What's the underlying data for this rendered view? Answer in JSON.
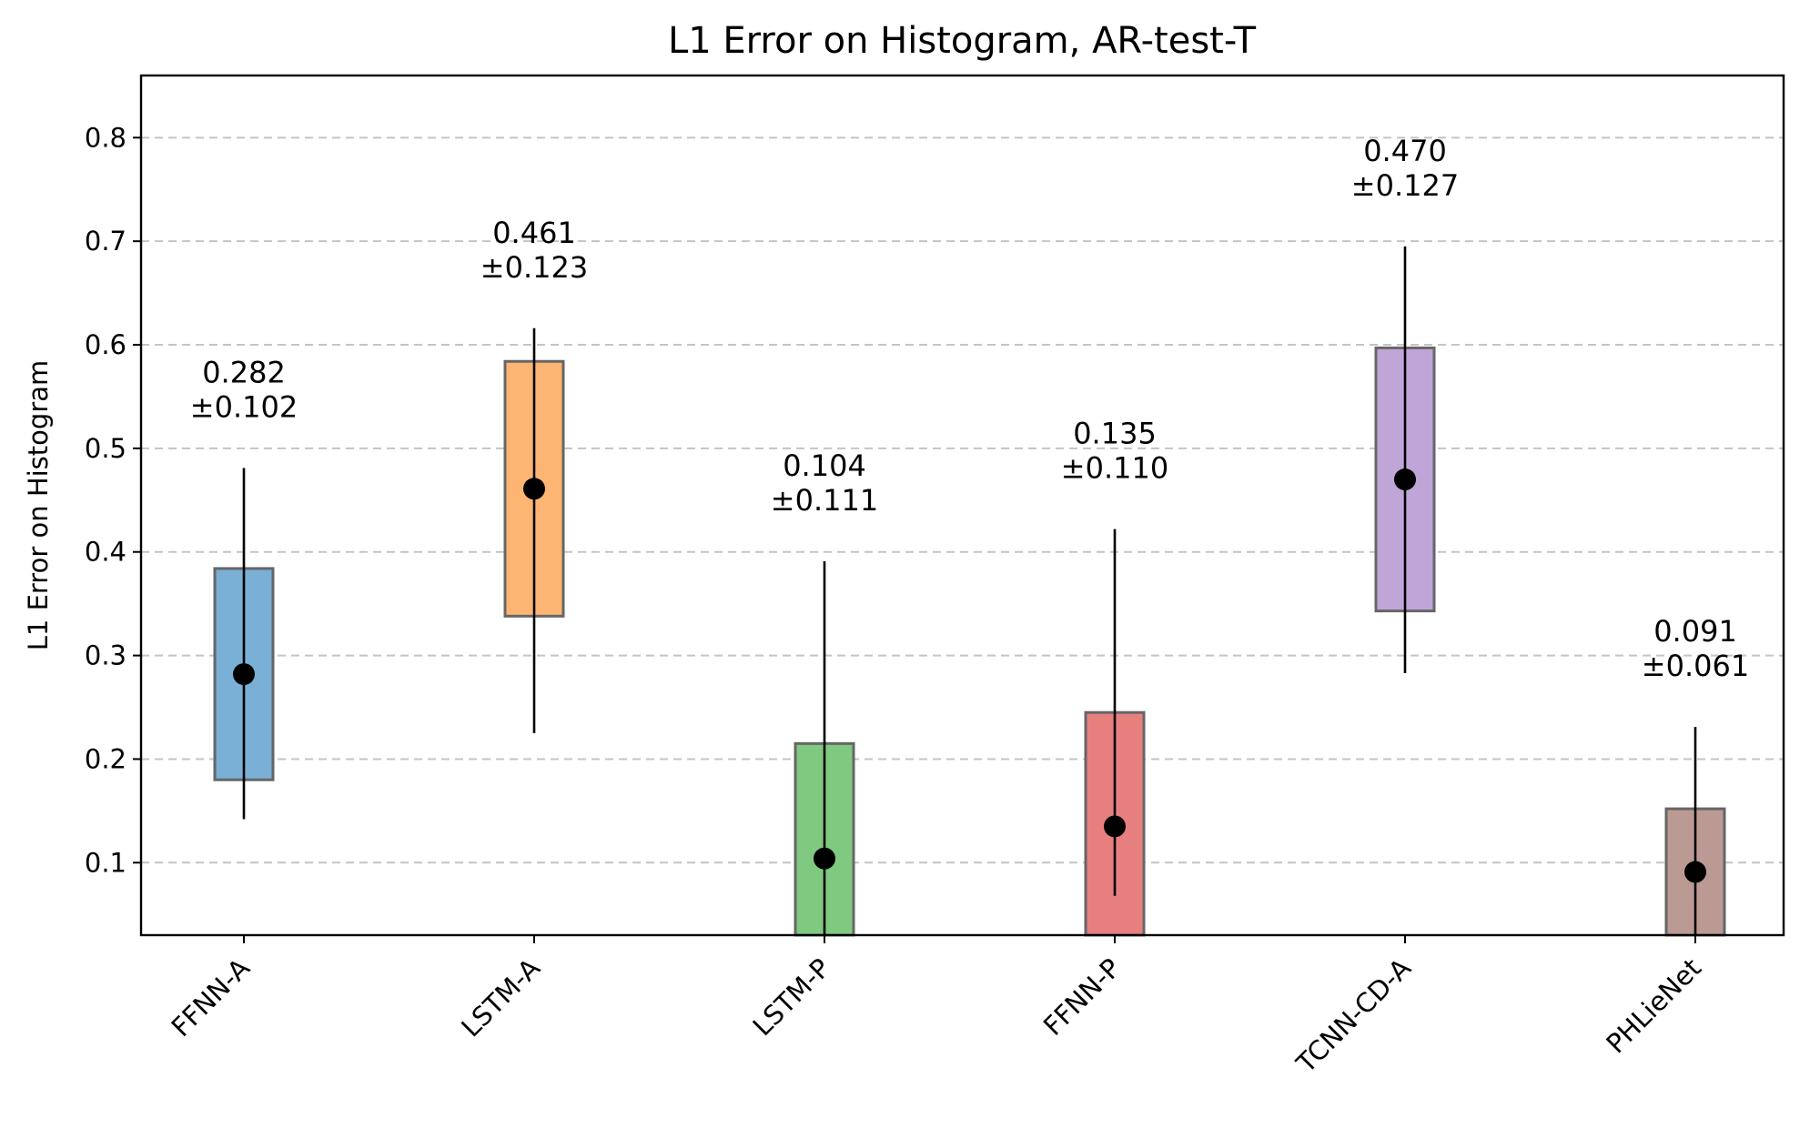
{
  "chart_data": {
    "type": "bar",
    "title": "L1 Error on Histogram, AR-test-T",
    "xlabel": "",
    "ylabel": "L1 Error on Histogram",
    "ylim": [
      0.03,
      0.86
    ],
    "yticks": [
      "0.1",
      "0.2",
      "0.3",
      "0.4",
      "0.5",
      "0.6",
      "0.7",
      "0.8"
    ],
    "grid": "horizontal dashed",
    "categories": [
      "FFNN-A",
      "LSTM-A",
      "LSTM-P",
      "FFNN-P",
      "TCNN-CD-A",
      "PHLieNet"
    ],
    "series": [
      {
        "values": [
          0.282,
          0.461,
          0.104,
          0.135,
          0.47,
          0.091
        ],
        "box_lower": [
          0.18,
          0.338,
          0.0,
          0.0,
          0.343,
          0.0
        ],
        "box_upper": [
          0.384,
          0.584,
          0.215,
          0.245,
          0.597,
          0.152
        ],
        "whisker_lower": [
          0.142,
          0.225,
          0.0,
          0.068,
          0.283,
          0.0
        ],
        "whisker_upper": [
          0.481,
          0.616,
          0.391,
          0.422,
          0.695,
          0.231
        ],
        "colors": [
          "#7aafd6",
          "#fdb573",
          "#80c980",
          "#e77f7f",
          "#bfa5d8",
          "#bb9a93"
        ]
      }
    ],
    "annotations": [
      {
        "mean": "0.282",
        "std": "±0.102"
      },
      {
        "mean": "0.461",
        "std": "±0.123"
      },
      {
        "mean": "0.104",
        "std": "±0.111"
      },
      {
        "mean": "0.135",
        "std": "±0.110"
      },
      {
        "mean": "0.470",
        "std": "±0.127"
      },
      {
        "mean": "0.091",
        "std": "±0.061"
      }
    ]
  }
}
